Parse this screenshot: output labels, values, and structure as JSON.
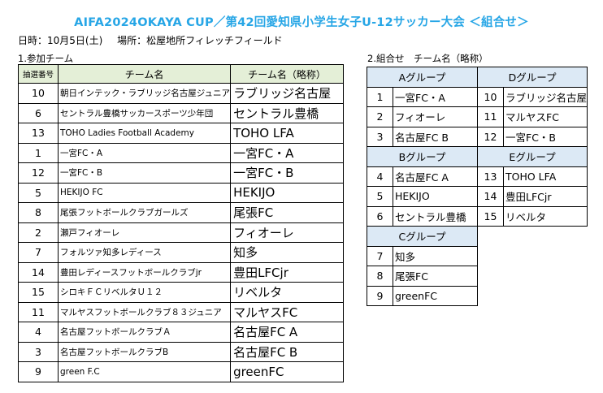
{
  "title": "AIFA2024OKAYA CUP／第42回愛知県小学生女子U-12サッカー大会 ＜組合せ＞",
  "info": {
    "date": "日時：10月5日(土)",
    "venue": "場所：松屋地所フィレッチフィールド"
  },
  "section1": "1.参加チーム",
  "section2": "2.組合せ　チーム名（略称）",
  "list_headers": [
    "抽選番号",
    "チーム名",
    "チーム名（略称）"
  ],
  "teams": [
    {
      "no": "10",
      "name": "朝日インテック・ラブリッジ名古屋ジュニア",
      "short": "ラブリッジ名古屋"
    },
    {
      "no": "6",
      "name": "セントラル豊橋サッカースポーツ少年団",
      "short": "セントラル豊橋"
    },
    {
      "no": "13",
      "name": "TOHO Ladies Football Academy",
      "short": "TOHO LFA"
    },
    {
      "no": "1",
      "name": "一宮FC・A",
      "short": "一宮FC・A"
    },
    {
      "no": "12",
      "name": "一宮FC・B",
      "short": "一宮FC・B"
    },
    {
      "no": "5",
      "name": "HEKIJO FC",
      "short": "HEKIJO"
    },
    {
      "no": "8",
      "name": "尾張フットボールクラブガールズ",
      "short": "尾張FC"
    },
    {
      "no": "2",
      "name": "瀬戸フィオーレ",
      "short": "フィオーレ"
    },
    {
      "no": "7",
      "name": "フォルツァ知多レディース",
      "short": "知多"
    },
    {
      "no": "14",
      "name": "豊田レディースフットボールクラブjr",
      "short": "豊田LFCjr"
    },
    {
      "no": "15",
      "name": "シロキＦＣリベルタＵ１２",
      "short": "リベルタ"
    },
    {
      "no": "11",
      "name": "マルヤスフットボールクラブ８３ジュニア",
      "short": "マルヤスFC"
    },
    {
      "no": "4",
      "name": "名古屋フットボールクラブＡ",
      "short": "名古屋FC A"
    },
    {
      "no": "3",
      "name": "名古屋フットボールクラブB",
      "short": "名古屋FC B"
    },
    {
      "no": "9",
      "name": "green F.C",
      "short": "greenFC"
    }
  ],
  "groups": {
    "A": {
      "label": "Aグループ",
      "teams": [
        {
          "no": "1",
          "name": "一宮FC・A"
        },
        {
          "no": "2",
          "name": "フィオーレ"
        },
        {
          "no": "3",
          "name": "名古屋FC B"
        }
      ]
    },
    "D": {
      "label": "Dグループ",
      "teams": [
        {
          "no": "10",
          "name": "ラブリッジ名古屋"
        },
        {
          "no": "11",
          "name": "マルヤスFC"
        },
        {
          "no": "12",
          "name": "一宮FC・B"
        }
      ]
    },
    "B": {
      "label": "Bグループ",
      "teams": [
        {
          "no": "4",
          "name": "名古屋FC A"
        },
        {
          "no": "5",
          "name": "HEKIJO"
        },
        {
          "no": "6",
          "name": "セントラル豊橋"
        }
      ]
    },
    "E": {
      "label": "Eグループ",
      "teams": [
        {
          "no": "13",
          "name": "TOHO LFA"
        },
        {
          "no": "14",
          "name": "豊田LFCjr"
        },
        {
          "no": "15",
          "name": "リベルタ"
        }
      ]
    },
    "C": {
      "label": "Cグループ",
      "teams": [
        {
          "no": "7",
          "name": "知多"
        },
        {
          "no": "8",
          "name": "尾張FC"
        },
        {
          "no": "9",
          "name": "greenFC"
        }
      ]
    }
  },
  "colors": {
    "title": "#27a6e6",
    "list_header_bg": "#e4efd7",
    "group_header_bg": "#dce9f5"
  }
}
